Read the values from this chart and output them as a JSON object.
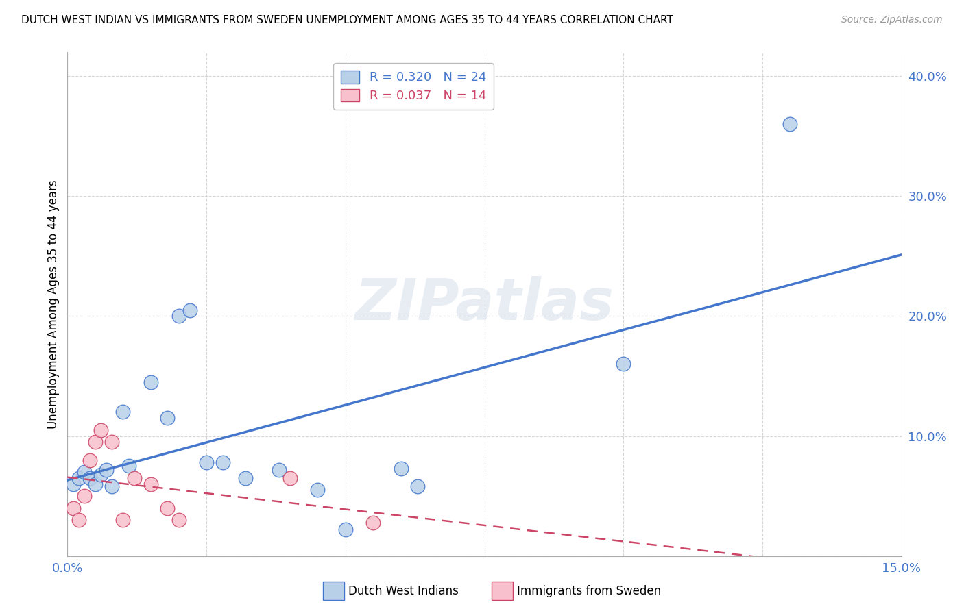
{
  "title": "DUTCH WEST INDIAN VS IMMIGRANTS FROM SWEDEN UNEMPLOYMENT AMONG AGES 35 TO 44 YEARS CORRELATION CHART",
  "source": "Source: ZipAtlas.com",
  "ylabel": "Unemployment Among Ages 35 to 44 years",
  "watermark": "ZIPatlas",
  "blue_label": "Dutch West Indians",
  "pink_label": "Immigrants from Sweden",
  "blue_R": "R = 0.320",
  "blue_N": "N = 24",
  "pink_R": "R = 0.037",
  "pink_N": "N = 14",
  "blue_color": "#b8d0e8",
  "blue_line_color": "#4477cc",
  "blue_edge_color": "#4477cc",
  "pink_color": "#f8c0cc",
  "pink_line_color": "#cc4466",
  "pink_edge_color": "#cc4466",
  "background_color": "#ffffff",
  "grid_color": "#cccccc",
  "blue_x": [
    0.001,
    0.002,
    0.003,
    0.004,
    0.005,
    0.006,
    0.007,
    0.008,
    0.01,
    0.011,
    0.015,
    0.018,
    0.02,
    0.022,
    0.025,
    0.028,
    0.032,
    0.038,
    0.045,
    0.05,
    0.06,
    0.063,
    0.1,
    0.13
  ],
  "blue_y": [
    0.06,
    0.065,
    0.07,
    0.065,
    0.06,
    0.068,
    0.072,
    0.058,
    0.12,
    0.075,
    0.145,
    0.115,
    0.2,
    0.205,
    0.078,
    0.078,
    0.065,
    0.072,
    0.055,
    0.022,
    0.073,
    0.058,
    0.16,
    0.36
  ],
  "pink_x": [
    0.001,
    0.002,
    0.003,
    0.004,
    0.005,
    0.006,
    0.008,
    0.01,
    0.012,
    0.015,
    0.018,
    0.02,
    0.04,
    0.055
  ],
  "pink_y": [
    0.04,
    0.03,
    0.05,
    0.08,
    0.095,
    0.105,
    0.095,
    0.03,
    0.065,
    0.06,
    0.04,
    0.03,
    0.065,
    0.028
  ],
  "xlim": [
    0.0,
    0.15
  ],
  "ylim": [
    0.0,
    0.42
  ],
  "yticks": [
    0.0,
    0.1,
    0.2,
    0.3,
    0.4
  ],
  "xticks": [
    0.0,
    0.025,
    0.05,
    0.075,
    0.1,
    0.125,
    0.15
  ]
}
